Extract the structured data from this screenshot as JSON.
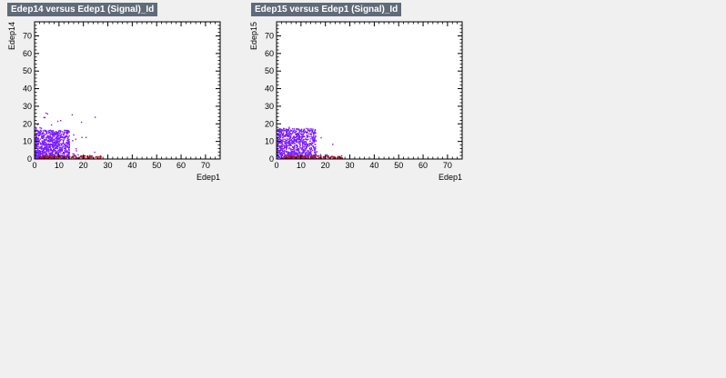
{
  "chart_data": [
    {
      "type": "scatter",
      "title": "Edep14 versus Edep1 (Signal)_Id",
      "xlabel": "Edep1",
      "ylabel": "Edep14",
      "xlim": [
        0,
        76
      ],
      "ylim": [
        0,
        78
      ],
      "xticks": [
        0,
        10,
        20,
        30,
        40,
        50,
        60,
        70
      ],
      "yticks": [
        0,
        10,
        20,
        30,
        40,
        50,
        60,
        70
      ],
      "grid": false,
      "colors": {
        "cluster": "#7a1cff",
        "low": "#b0162a"
      },
      "seed": 11,
      "clusters": [
        {
          "name": "",
          "color": "#7a1cff",
          "n": 900,
          "x_range": [
            0,
            14
          ],
          "y_range": [
            0,
            16
          ],
          "tail_x_max": 26,
          "tail_y_max": 30
        },
        {
          "name": "",
          "color": "#b0162a",
          "n": 160,
          "x_range": [
            2,
            27
          ],
          "y_range": [
            0,
            1.5
          ]
        }
      ]
    },
    {
      "type": "scatter",
      "title": "Edep15 versus Edep1 (Signal)_Id",
      "xlabel": "Edep1",
      "ylabel": "Edep15",
      "xlim": [
        0,
        76
      ],
      "ylim": [
        0,
        78
      ],
      "xticks": [
        0,
        10,
        20,
        30,
        40,
        50,
        60,
        70
      ],
      "yticks": [
        0,
        10,
        20,
        30,
        40,
        50,
        60,
        70
      ],
      "grid": false,
      "colors": {
        "cluster": "#7a1cff",
        "low": "#b0162a"
      },
      "seed": 29,
      "clusters": [
        {
          "name": "",
          "color": "#7a1cff",
          "n": 850,
          "x_range": [
            0,
            16
          ],
          "y_range": [
            0,
            17
          ],
          "tail_x_max": 27,
          "tail_y_max": 22
        },
        {
          "name": "",
          "color": "#b0162a",
          "n": 150,
          "x_range": [
            3,
            27
          ],
          "y_range": [
            0,
            1.5
          ]
        }
      ]
    }
  ]
}
